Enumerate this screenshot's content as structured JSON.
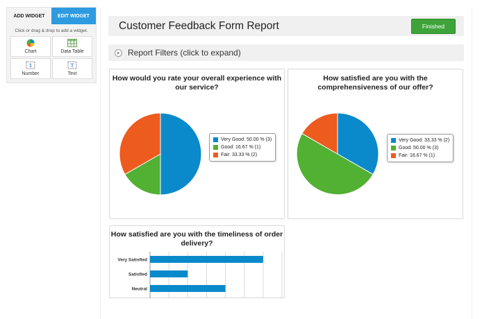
{
  "widget_panel": {
    "tabs": [
      "ADD WIDGET",
      "EDIT WIDGET"
    ],
    "hint": "Click or drag & drop to add a widget.",
    "widgets": [
      {
        "label": "Chart",
        "icon": "pie-chart-icon"
      },
      {
        "label": "Data Table",
        "icon": "table-icon"
      },
      {
        "label": "Number",
        "icon": "number-icon"
      },
      {
        "label": "Text",
        "icon": "text-icon"
      }
    ]
  },
  "header": {
    "title": "Customer Feedback Form Report",
    "status_button": "Finished"
  },
  "filters": {
    "label": "Report Filters (click to expand)"
  },
  "colors": {
    "very_good": "#0a8acb",
    "good": "#52b033",
    "fair": "#ee5b1e",
    "accent": "#2e9be0",
    "finished": "#3ea43a"
  },
  "chart_data": [
    {
      "type": "pie",
      "title": "How would you rate your overall experience with our service?",
      "slices": [
        {
          "label": "Very Good",
          "percent": 50.0,
          "count": 3,
          "color": "#0a8acb"
        },
        {
          "label": "Good",
          "percent": 16.67,
          "count": 1,
          "color": "#52b033"
        },
        {
          "label": "Fair",
          "percent": 33.33,
          "count": 2,
          "color": "#ee5b1e"
        }
      ],
      "legend_text": [
        "Very Good: 50.00 % (3)",
        "Good: 16.67 % (1)",
        "Fair: 33.33 % (2)"
      ],
      "legend": "right"
    },
    {
      "type": "pie",
      "title": "How satisfied are you with the comprehensiveness of our offer?",
      "slices": [
        {
          "label": "Very Good",
          "percent": 33.33,
          "count": 2,
          "color": "#0a8acb"
        },
        {
          "label": "Good",
          "percent": 50.0,
          "count": 3,
          "color": "#52b033"
        },
        {
          "label": "Fair",
          "percent": 16.67,
          "count": 1,
          "color": "#ee5b1e"
        }
      ],
      "legend_text": [
        "Very Good: 33.33 % (2)",
        "Good: 50.00 % (3)",
        "Fair: 16.67 % (1)"
      ],
      "legend": "right"
    },
    {
      "type": "bar",
      "orientation": "horizontal",
      "title": "How satisfied are you with the timeliness of order delivery?",
      "categories": [
        "Very Satisfied",
        "Satisfied",
        "Neutral"
      ],
      "values": [
        3,
        1,
        2
      ],
      "xlim": [
        0,
        3.5
      ],
      "grid": true,
      "color": "#0a8acb"
    }
  ]
}
